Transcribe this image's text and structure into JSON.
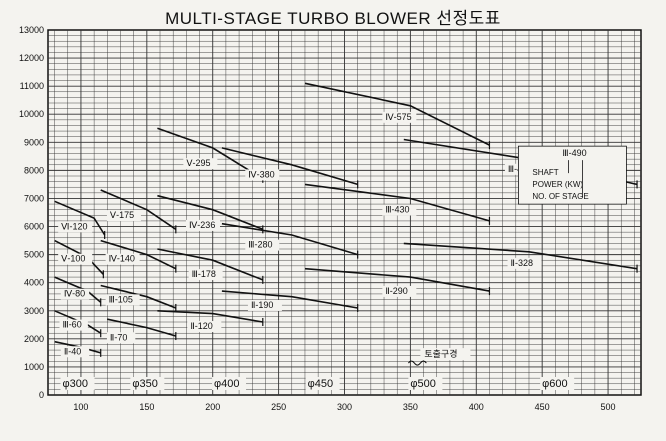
{
  "chart_data": {
    "type": "line",
    "title": "MULTI-STAGE TURBO BLOWER 선정도표",
    "xlim": [
      75,
      525
    ],
    "ylim": [
      0,
      13000
    ],
    "x_ticks": [
      100,
      150,
      200,
      250,
      300,
      350,
      400,
      450,
      500
    ],
    "y_ticks": [
      0,
      1000,
      2000,
      3000,
      4000,
      5000,
      6000,
      7000,
      8000,
      9000,
      10000,
      11000,
      12000,
      13000
    ],
    "grid": true,
    "legend_box": {
      "label": "Ⅲ-490",
      "lines": [
        "SHAFT",
        "POWER (KW)",
        "NO. OF STAGE"
      ]
    },
    "outlet_note": "토출구경",
    "diameter_labels": [
      {
        "label": "φ300",
        "x": 86
      },
      {
        "label": "φ350",
        "x": 139
      },
      {
        "label": "φ400",
        "x": 201
      },
      {
        "label": "φ450",
        "x": 272
      },
      {
        "label": "φ500",
        "x": 350
      },
      {
        "label": "φ600",
        "x": 450
      }
    ],
    "series": [
      {
        "name": "Ⅵ-120",
        "points": [
          [
            80,
            6900
          ],
          [
            110,
            6300
          ],
          [
            118,
            5700
          ]
        ],
        "label_at": [
          85,
          5900
        ]
      },
      {
        "name": "Ⅴ-100",
        "points": [
          [
            80,
            5500
          ],
          [
            105,
            4900
          ],
          [
            117,
            4300
          ]
        ],
        "label_at": [
          85,
          4750
        ]
      },
      {
        "name": "Ⅳ-80",
        "points": [
          [
            80,
            4200
          ],
          [
            105,
            3700
          ],
          [
            115,
            3300
          ]
        ],
        "label_at": [
          87,
          3500
        ]
      },
      {
        "name": "Ⅲ-60",
        "points": [
          [
            80,
            3000
          ],
          [
            105,
            2500
          ],
          [
            115,
            2200
          ]
        ],
        "label_at": [
          86,
          2400
        ]
      },
      {
        "name": "Ⅱ-40",
        "points": [
          [
            80,
            1900
          ],
          [
            100,
            1700
          ],
          [
            115,
            1500
          ]
        ],
        "label_at": [
          87,
          1450
        ]
      },
      {
        "name": "Ⅴ-175",
        "points": [
          [
            115,
            7300
          ],
          [
            150,
            6600
          ],
          [
            172,
            5900
          ]
        ],
        "label_at": [
          122,
          6300
        ]
      },
      {
        "name": "Ⅳ-140",
        "points": [
          [
            115,
            5500
          ],
          [
            150,
            5000
          ],
          [
            172,
            4500
          ]
        ],
        "label_at": [
          121,
          4750
        ]
      },
      {
        "name": "Ⅲ-105",
        "points": [
          [
            115,
            3900
          ],
          [
            150,
            3500
          ],
          [
            172,
            3100
          ]
        ],
        "label_at": [
          121,
          3300
        ]
      },
      {
        "name": "Ⅱ-70",
        "points": [
          [
            120,
            2700
          ],
          [
            150,
            2400
          ],
          [
            172,
            2100
          ]
        ],
        "label_at": [
          122,
          1950
        ]
      },
      {
        "name": "Ⅴ-295",
        "points": [
          [
            158,
            9500
          ],
          [
            200,
            8800
          ],
          [
            238,
            7700
          ]
        ],
        "label_at": [
          180,
          8150
        ]
      },
      {
        "name": "Ⅳ-236",
        "points": [
          [
            158,
            7100
          ],
          [
            200,
            6600
          ],
          [
            238,
            5900
          ]
        ],
        "label_at": [
          182,
          5950
        ]
      },
      {
        "name": "Ⅲ-178",
        "points": [
          [
            158,
            5200
          ],
          [
            200,
            4800
          ],
          [
            238,
            4100
          ]
        ],
        "label_at": [
          184,
          4200
        ]
      },
      {
        "name": "Ⅱ-120",
        "points": [
          [
            158,
            3000
          ],
          [
            200,
            2900
          ],
          [
            238,
            2600
          ]
        ],
        "label_at": [
          183,
          2350
        ]
      },
      {
        "name": "Ⅳ-380",
        "points": [
          [
            207,
            8800
          ],
          [
            260,
            8200
          ],
          [
            310,
            7500
          ]
        ],
        "label_at": [
          227,
          7750
        ]
      },
      {
        "name": "Ⅲ-280",
        "points": [
          [
            207,
            6100
          ],
          [
            260,
            5700
          ],
          [
            310,
            5000
          ]
        ],
        "label_at": [
          227,
          5250
        ]
      },
      {
        "name": "Ⅱ-190",
        "points": [
          [
            207,
            3700
          ],
          [
            260,
            3500
          ],
          [
            310,
            3100
          ]
        ],
        "label_at": [
          229,
          3100
        ]
      },
      {
        "name": "Ⅳ-575",
        "points": [
          [
            270,
            11100
          ],
          [
            350,
            10300
          ],
          [
            410,
            8900
          ]
        ],
        "label_at": [
          331,
          9800
        ]
      },
      {
        "name": "Ⅲ-430",
        "points": [
          [
            270,
            7500
          ],
          [
            350,
            7000
          ],
          [
            410,
            6200
          ]
        ],
        "label_at": [
          331,
          6500
        ]
      },
      {
        "name": "Ⅱ-290",
        "points": [
          [
            270,
            4500
          ],
          [
            350,
            4200
          ],
          [
            410,
            3700
          ]
        ],
        "label_at": [
          331,
          3600
        ]
      },
      {
        "name": "Ⅲ-490",
        "points": [
          [
            345,
            9100
          ],
          [
            440,
            8400
          ],
          [
            522,
            7500
          ]
        ],
        "label_at": [
          424,
          7950
        ]
      },
      {
        "name": "Ⅱ-328",
        "points": [
          [
            345,
            5400
          ],
          [
            440,
            5100
          ],
          [
            522,
            4500
          ]
        ],
        "label_at": [
          426,
          4600
        ]
      }
    ]
  }
}
